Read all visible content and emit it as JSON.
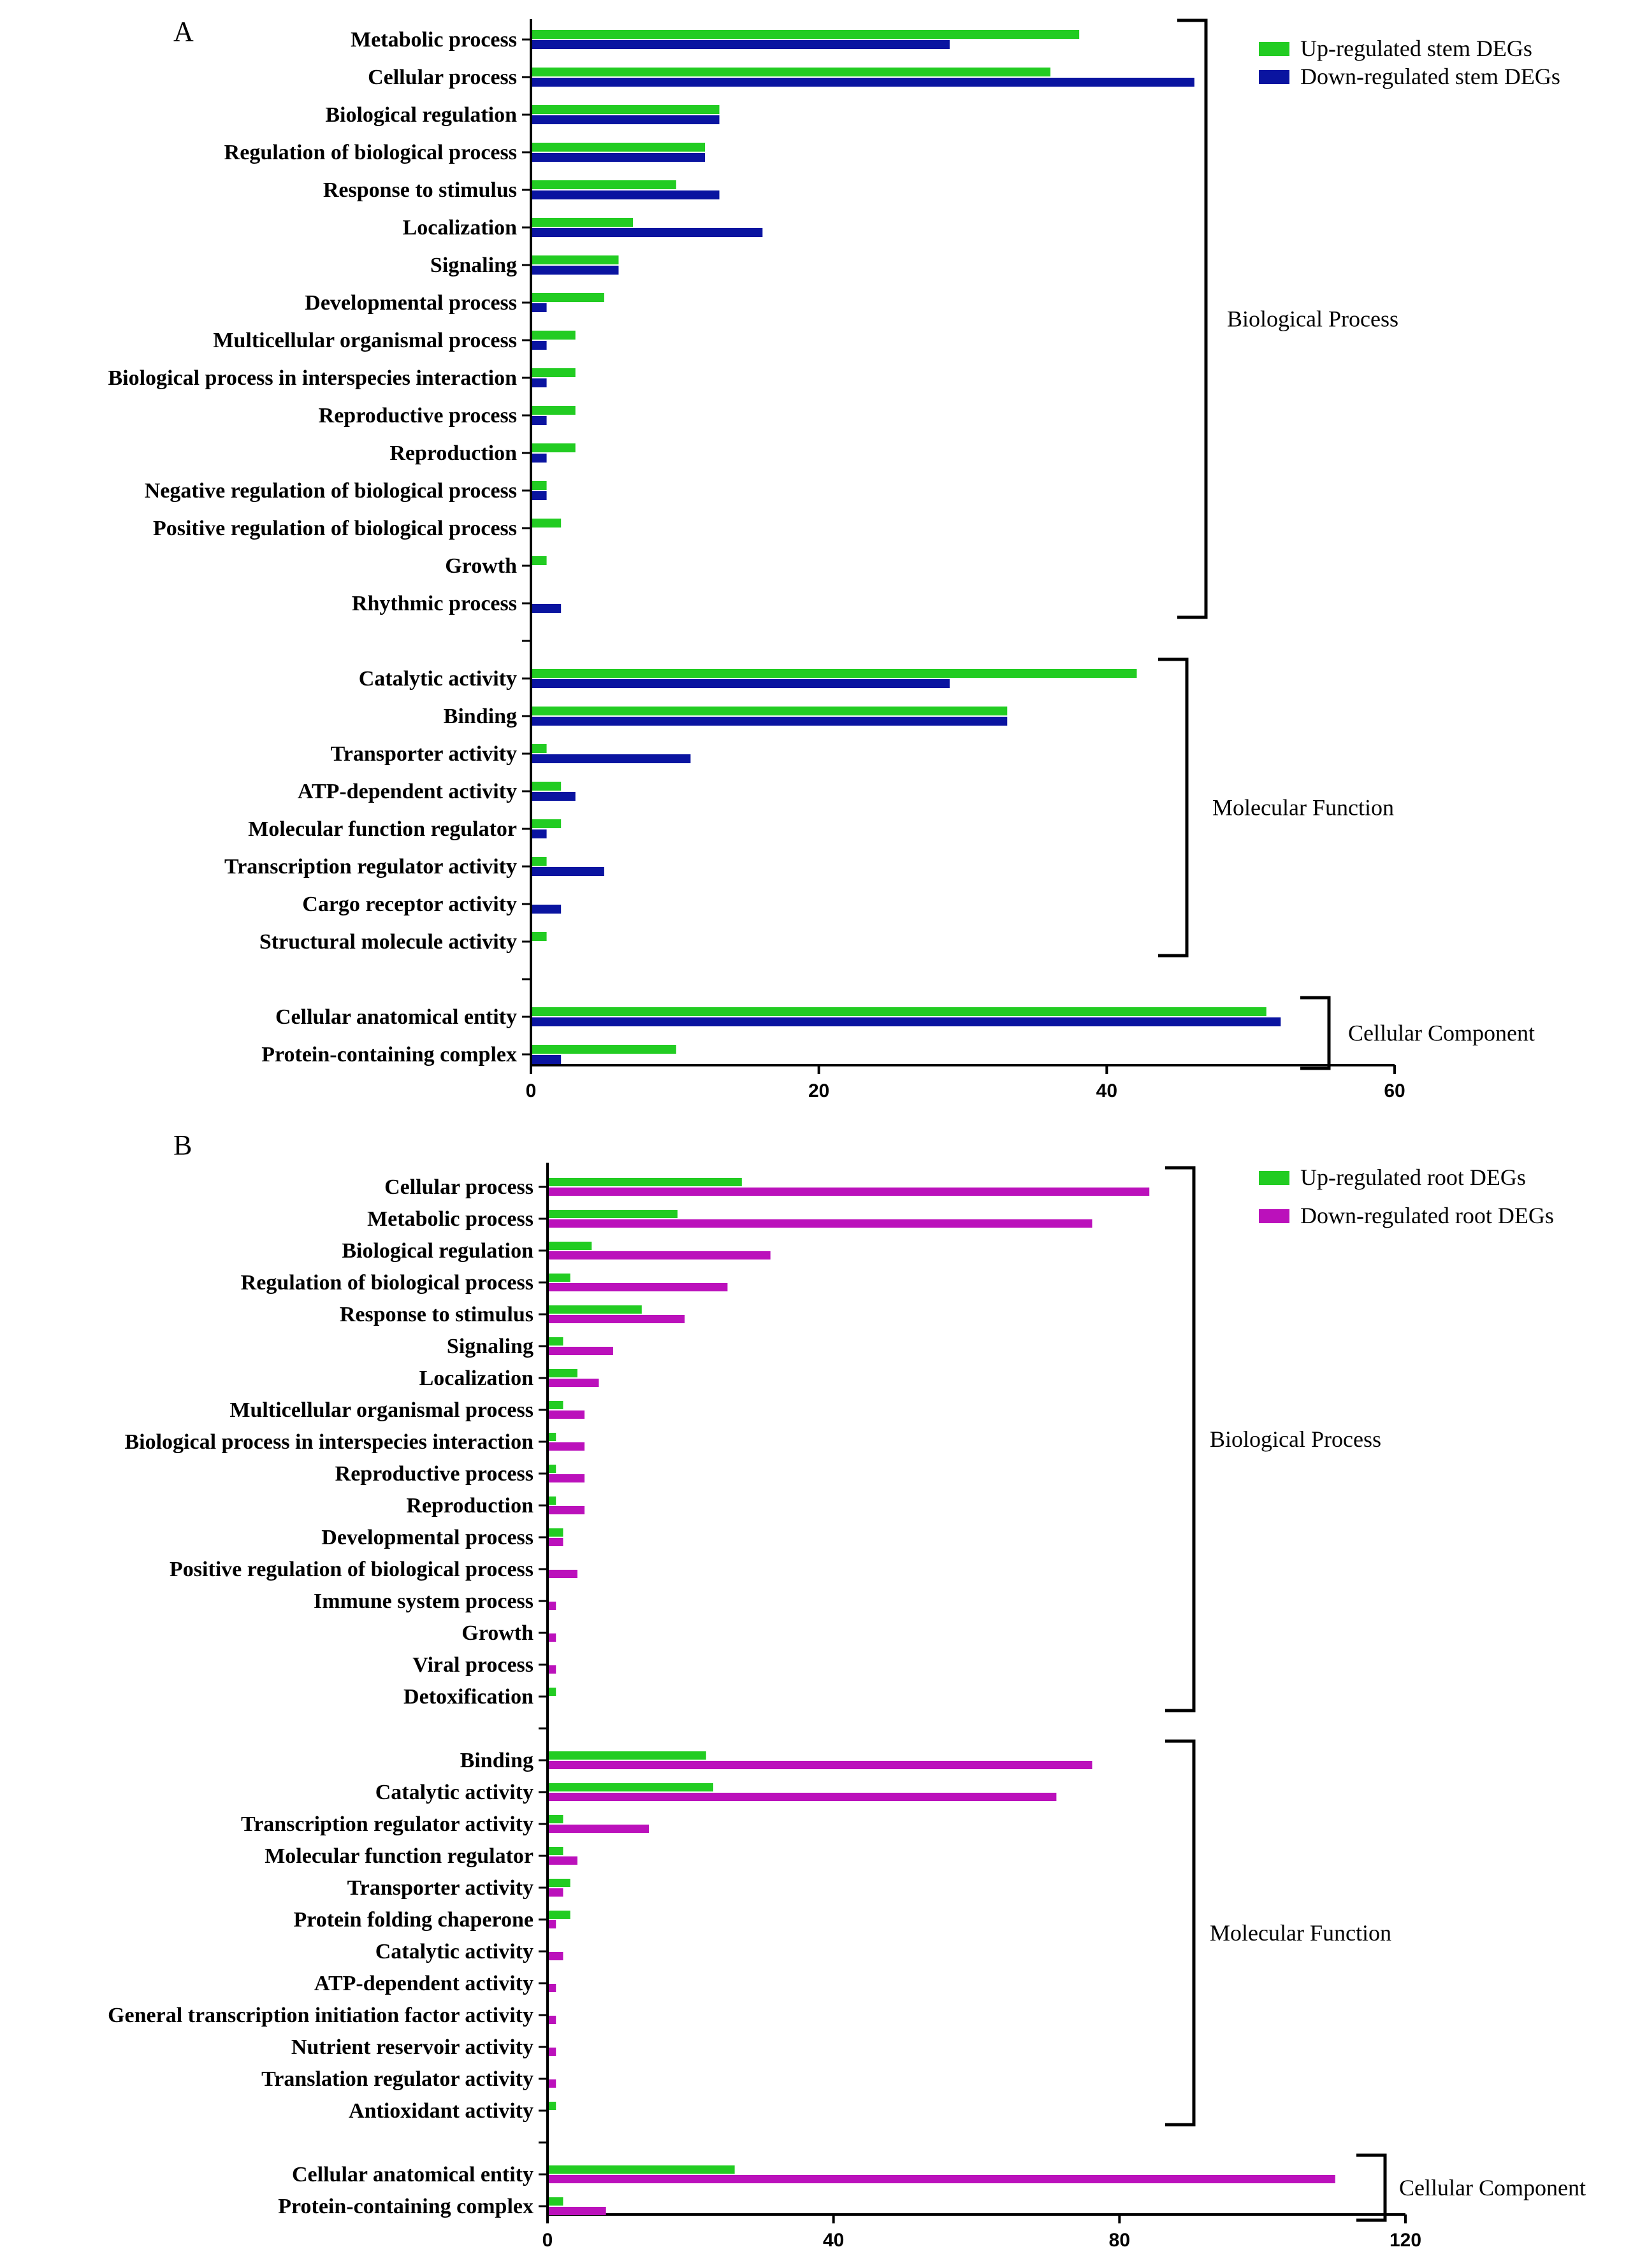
{
  "chart_data": [
    {
      "type": "bar",
      "orientation": "horizontal",
      "panel_label": "A",
      "xlim": [
        0,
        60
      ],
      "xticks": [
        0,
        20,
        40,
        60
      ],
      "colors": {
        "up": "#22cc22",
        "down": "#0a14a0"
      },
      "legend": [
        {
          "name": "Up-regulated stem  DEGs",
          "color": "#22cc22"
        },
        {
          "name": "Down-regulated stem  DEGs",
          "color": "#0a14a0"
        }
      ],
      "groups": [
        {
          "name": "Biological Process",
          "categories": [
            "Metabolic process",
            "Cellular process",
            "Biological regulation",
            "Regulation of biological process",
            "Response to stimulus",
            "Localization",
            "Signaling",
            "Developmental process",
            "Multicellular organismal process",
            "Biological process in interspecies interaction",
            "Reproductive process",
            "Reproduction",
            "Negative regulation of biological process",
            "Positive regulation of biological process",
            "Growth",
            "Rhythmic process"
          ],
          "up": [
            38,
            36,
            13,
            12,
            10,
            7,
            6,
            5,
            3,
            3,
            3,
            3,
            1,
            2,
            1,
            0
          ],
          "down": [
            29,
            46,
            13,
            12,
            13,
            16,
            6,
            1,
            1,
            1,
            1,
            1,
            1,
            0,
            0,
            2
          ]
        },
        {
          "name": "Molecular Function",
          "categories": [
            "Catalytic activity",
            "Binding",
            "Transporter activity",
            "ATP-dependent activity",
            "Molecular function regulator",
            "Transcription regulator activity",
            "Cargo receptor activity",
            "Structural molecule activity"
          ],
          "up": [
            42,
            33,
            1,
            2,
            2,
            1,
            0,
            1
          ],
          "down": [
            29,
            33,
            11,
            3,
            1,
            5,
            2,
            0
          ]
        },
        {
          "name": "Cellular Component",
          "categories": [
            "Cellular anatomical entity",
            "Protein-containing complex"
          ],
          "up": [
            51,
            10
          ],
          "down": [
            52,
            2
          ]
        }
      ]
    },
    {
      "type": "bar",
      "orientation": "horizontal",
      "panel_label": "B",
      "xlim": [
        0,
        120
      ],
      "xticks": [
        0,
        40,
        80,
        120
      ],
      "colors": {
        "up": "#22cc22",
        "down": "#bb11bb"
      },
      "legend": [
        {
          "name": "Up-regulated root  DEGs",
          "color": "#22cc22"
        },
        {
          "name": "Down-regulated root  DEGs",
          "color": "#bb11bb"
        }
      ],
      "groups": [
        {
          "name": "Biological Process",
          "categories": [
            "Cellular process",
            "Metabolic process",
            "Biological regulation",
            "Regulation of biological process",
            "Response to stimulus",
            "Signaling",
            "Localization",
            "Multicellular organismal process",
            "Biological process in interspecies interaction",
            "Reproductive process",
            "Reproduction",
            "Developmental process",
            "Positive regulation of biological process",
            "Immune system process",
            "Growth",
            "Viral process",
            "Detoxification"
          ],
          "up": [
            27,
            18,
            6,
            3,
            13,
            2,
            4,
            2,
            1,
            1,
            1,
            2,
            0,
            0,
            0,
            0,
            1
          ],
          "down": [
            84,
            76,
            31,
            25,
            19,
            9,
            7,
            5,
            5,
            5,
            5,
            2,
            4,
            1,
            1,
            1,
            0
          ]
        },
        {
          "name": "Molecular Function",
          "categories": [
            "Binding",
            "Catalytic activity",
            "Transcription regulator activity",
            "Molecular function regulator",
            "Transporter activity",
            "Protein folding chaperone",
            "Catalytic activity",
            "ATP-dependent activity",
            "General transcription initiation factor activity",
            "Nutrient reservoir activity",
            "Translation regulator activity",
            "Antioxidant activity"
          ],
          "up": [
            22,
            23,
            2,
            2,
            3,
            3,
            0,
            0,
            0,
            0,
            0,
            1
          ],
          "down": [
            76,
            71,
            14,
            4,
            2,
            1,
            2,
            1,
            1,
            1,
            1,
            0
          ]
        },
        {
          "name": "Cellular Component",
          "categories": [
            "Cellular anatomical entity",
            "Protein-containing complex"
          ],
          "up": [
            26,
            2
          ],
          "down": [
            110,
            8
          ]
        }
      ]
    }
  ]
}
